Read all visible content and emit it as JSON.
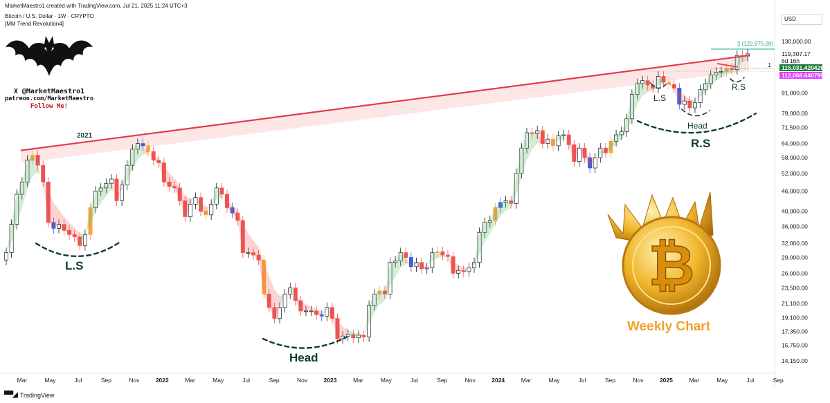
{
  "header": {
    "title_line": "MarketMaestro1 created with TradingView.com, Jul 21, 2025 11:24 UTC+3",
    "symbol_line": "Bitcoin / U.S. Dollar · 1W · CRYPTO",
    "indicator_line": "[MM Trend Revolution4]",
    "currency": "USD"
  },
  "logo": {
    "icon": "bat-icon",
    "line1": "X @MarketMaestro1",
    "line2": "patreon.com/MarketMaestro",
    "line3": "Follow Me!"
  },
  "annotations": {
    "year_2021": "2021",
    "ls_left": "L.S",
    "head_left": "Head",
    "ls_right": "L.S",
    "head_right": "Head",
    "rs_right_small": "R.S",
    "rs_right_big": "R.S",
    "fib_label": "2 (122,975.28)",
    "fib_1": "1",
    "weekly_chart": "Weekly Chart",
    "coin_icon": "bitcoin-crown-icon"
  },
  "footer": {
    "brand": "TradingView",
    "logo_icon": "tradingview-logo-icon"
  },
  "chart_data": {
    "type": "candlestick",
    "scale": "log",
    "y_ticks": [
      130000,
      119307.17,
      91000,
      79000,
      71500,
      64000,
      58000,
      52000,
      46000,
      40000,
      36000,
      32000,
      29000,
      26000,
      23500,
      21100,
      19100,
      17350,
      15750,
      14150
    ],
    "y_tick_labels": [
      "130,000.00",
      "119,307.17",
      "91,000.00",
      "79,000.00",
      "71,500.00",
      "64,000.00",
      "58,000.00",
      "52,000.00",
      "46,000.00",
      "40,000.00",
      "36,000.00",
      "32,000.00",
      "29,000.00",
      "26,000.00",
      "23,500.00",
      "21,100.00",
      "19,100.00",
      "17,350.00",
      "15,750.00",
      "14,150.00"
    ],
    "x_labels": [
      "Mar",
      "May",
      "Jul",
      "Sep",
      "Nov",
      "2022",
      "Mar",
      "May",
      "Jul",
      "Sep",
      "Nov",
      "2023",
      "Mar",
      "May",
      "Jul",
      "Sep",
      "Nov",
      "2024",
      "Mar",
      "May",
      "Jul",
      "Sep",
      "Nov",
      "2025",
      "Mar",
      "May",
      "Jul",
      "Sep"
    ],
    "x_year_labels": [
      "2022",
      "2023",
      "2024",
      "2025"
    ],
    "price_badges": [
      {
        "label": "6d 16h",
        "value": "",
        "color": "#ffffff",
        "text": "#131722"
      },
      {
        "label": "115,031.420426",
        "value": 115031.42,
        "color": "#1e7a3a",
        "text": "#ffffff"
      },
      {
        "label": "112,068.640799",
        "value": 112068.64,
        "color": "#e040fb",
        "text": "#ffffff"
      }
    ],
    "resistance_line": [
      {
        "x": "2021-03",
        "y": 61000
      },
      {
        "x": "2025-07",
        "y": 118000
      }
    ],
    "weekly_closes": [
      30000,
      36500,
      45000,
      49000,
      57000,
      59000,
      55000,
      49000,
      37000,
      35500,
      36500,
      35000,
      34000,
      33500,
      31500,
      34000,
      41000,
      46000,
      47000,
      48500,
      50000,
      43000,
      48000,
      55000,
      61500,
      64000,
      63000,
      60500,
      57000,
      56000,
      49000,
      47500,
      47000,
      43000,
      38500,
      42000,
      44000,
      40000,
      39000,
      42000,
      47000,
      45000,
      41000,
      39500,
      37500,
      30000,
      30000,
      29500,
      28500,
      22500,
      20500,
      19000,
      20500,
      22500,
      23500,
      21500,
      20000,
      20000,
      20000,
      19500,
      19300,
      20500,
      19000,
      16500,
      16800,
      17000,
      16600,
      16900,
      16700,
      20800,
      22500,
      23000,
      22500,
      28000,
      28300,
      30000,
      29000,
      27200,
      28000,
      26800,
      27000,
      30000,
      30200,
      29500,
      29200,
      26000,
      26500,
      26300,
      27000,
      28000,
      34500,
      37000,
      37500,
      41000,
      42500,
      43000,
      42200,
      52000,
      62000,
      69000,
      68500,
      70000,
      64000,
      66000,
      63000,
      67500,
      68000,
      63500,
      56500,
      62000,
      58000,
      54000,
      58000,
      62000,
      60000,
      65000,
      68000,
      69500,
      76000,
      90000,
      97000,
      99000,
      96000,
      94000,
      102000,
      98000,
      96500,
      94000,
      84000,
      86000,
      82000,
      85000,
      93000,
      97000,
      103000,
      105000,
      105500,
      108000,
      107000,
      118000,
      117500,
      119307
    ],
    "dates_span": [
      "2021-02",
      "2025-07"
    ]
  }
}
